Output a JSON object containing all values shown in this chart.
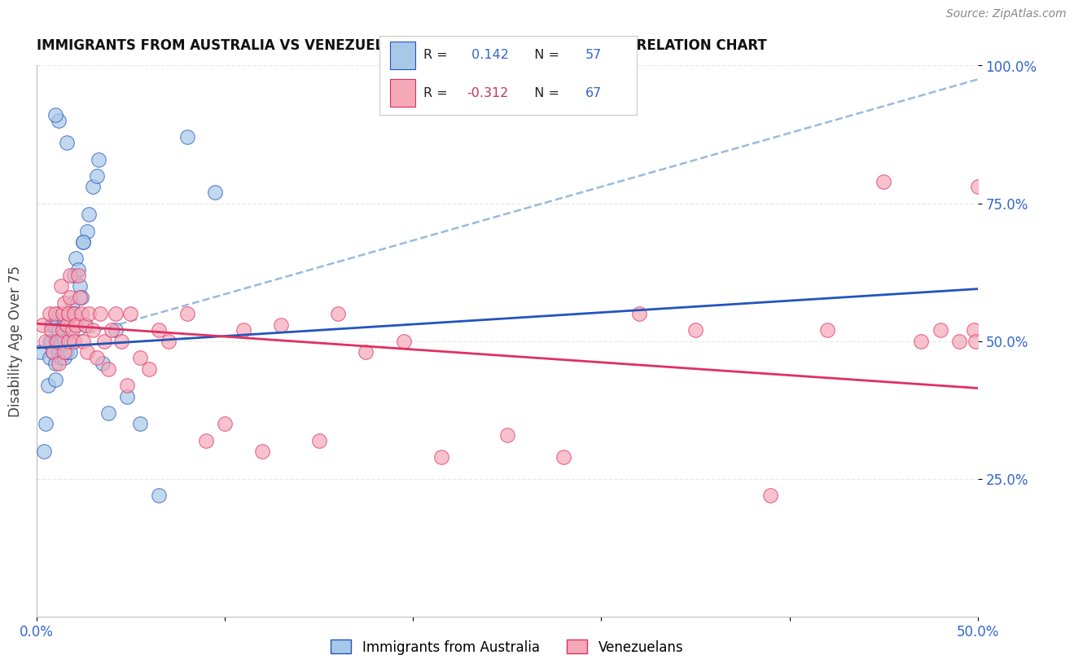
{
  "title": "IMMIGRANTS FROM AUSTRALIA VS VENEZUELAN DISABILITY AGE OVER 75 CORRELATION CHART",
  "source": "Source: ZipAtlas.com",
  "ylabel": "Disability Age Over 75",
  "legend_label1": "Immigrants from Australia",
  "legend_label2": "Venezuelans",
  "R1": 0.142,
  "N1": 57,
  "R2": -0.312,
  "N2": 67,
  "xlim": [
    0.0,
    0.5
  ],
  "ylim": [
    0.0,
    1.0
  ],
  "xtick_positions": [
    0.0,
    0.1,
    0.2,
    0.3,
    0.4,
    0.5
  ],
  "xticklabels": [
    "0.0%",
    "",
    "",
    "",
    "",
    "50.0%"
  ],
  "ytick_positions": [
    0.25,
    0.5,
    0.75,
    1.0
  ],
  "yticklabels": [
    "25.0%",
    "50.0%",
    "75.0%",
    "100.0%"
  ],
  "color1": "#a8c8e8",
  "color2": "#f4a8b8",
  "line_color1": "#2255bb",
  "line_color2": "#e03060",
  "dashed_color": "#99bbdd",
  "background_color": "#ffffff",
  "grid_color": "#e8e8e8",
  "title_color": "#111111",
  "tick_color": "#3366cc",
  "source_color": "#888888",
  "legend_R1_color": "#3366cc",
  "legend_R2_color": "#cc3355",
  "legend_N_color": "#3366cc",
  "blue_line_x0": 0.0,
  "blue_line_y0": 0.488,
  "blue_line_x1": 0.5,
  "blue_line_y1": 0.595,
  "pink_line_x0": 0.0,
  "pink_line_y0": 0.532,
  "pink_line_x1": 0.5,
  "pink_line_y1": 0.415,
  "dashed_line_x0": 0.0,
  "dashed_line_y0": 0.488,
  "dashed_line_x1": 0.5,
  "dashed_line_y1": 0.975,
  "australia_x": [
    0.002,
    0.004,
    0.005,
    0.006,
    0.007,
    0.007,
    0.008,
    0.008,
    0.009,
    0.009,
    0.01,
    0.01,
    0.01,
    0.011,
    0.011,
    0.012,
    0.012,
    0.012,
    0.013,
    0.013,
    0.014,
    0.014,
    0.015,
    0.015,
    0.015,
    0.016,
    0.016,
    0.017,
    0.017,
    0.018,
    0.018,
    0.019,
    0.02,
    0.02,
    0.021,
    0.022,
    0.023,
    0.024,
    0.025,
    0.026,
    0.027,
    0.028,
    0.03,
    0.032,
    0.033,
    0.035,
    0.038,
    0.042,
    0.048,
    0.055,
    0.065,
    0.08,
    0.095,
    0.025,
    0.016,
    0.012,
    0.01
  ],
  "australia_y": [
    0.48,
    0.3,
    0.35,
    0.42,
    0.5,
    0.47,
    0.5,
    0.53,
    0.48,
    0.53,
    0.5,
    0.46,
    0.43,
    0.5,
    0.54,
    0.48,
    0.52,
    0.55,
    0.5,
    0.47,
    0.51,
    0.48,
    0.5,
    0.47,
    0.54,
    0.48,
    0.53,
    0.5,
    0.55,
    0.52,
    0.48,
    0.57,
    0.62,
    0.55,
    0.65,
    0.63,
    0.6,
    0.58,
    0.68,
    0.53,
    0.7,
    0.73,
    0.78,
    0.8,
    0.83,
    0.46,
    0.37,
    0.52,
    0.4,
    0.35,
    0.22,
    0.87,
    0.77,
    0.68,
    0.86,
    0.9,
    0.91
  ],
  "venezuela_x": [
    0.003,
    0.005,
    0.007,
    0.008,
    0.009,
    0.01,
    0.011,
    0.012,
    0.013,
    0.014,
    0.014,
    0.015,
    0.015,
    0.016,
    0.017,
    0.017,
    0.018,
    0.018,
    0.019,
    0.02,
    0.02,
    0.021,
    0.022,
    0.023,
    0.024,
    0.025,
    0.026,
    0.027,
    0.028,
    0.03,
    0.032,
    0.034,
    0.036,
    0.038,
    0.04,
    0.042,
    0.045,
    0.048,
    0.05,
    0.055,
    0.06,
    0.065,
    0.07,
    0.08,
    0.09,
    0.1,
    0.11,
    0.12,
    0.13,
    0.15,
    0.16,
    0.175,
    0.195,
    0.215,
    0.25,
    0.28,
    0.32,
    0.35,
    0.39,
    0.42,
    0.45,
    0.47,
    0.48,
    0.49,
    0.498,
    0.499,
    0.5
  ],
  "venezuela_y": [
    0.53,
    0.5,
    0.55,
    0.52,
    0.48,
    0.55,
    0.5,
    0.46,
    0.6,
    0.55,
    0.52,
    0.48,
    0.57,
    0.53,
    0.5,
    0.55,
    0.58,
    0.62,
    0.52,
    0.55,
    0.5,
    0.53,
    0.62,
    0.58,
    0.55,
    0.5,
    0.53,
    0.48,
    0.55,
    0.52,
    0.47,
    0.55,
    0.5,
    0.45,
    0.52,
    0.55,
    0.5,
    0.42,
    0.55,
    0.47,
    0.45,
    0.52,
    0.5,
    0.55,
    0.32,
    0.35,
    0.52,
    0.3,
    0.53,
    0.32,
    0.55,
    0.48,
    0.5,
    0.29,
    0.33,
    0.29,
    0.55,
    0.52,
    0.22,
    0.52,
    0.79,
    0.5,
    0.52,
    0.5,
    0.52,
    0.5,
    0.78
  ]
}
